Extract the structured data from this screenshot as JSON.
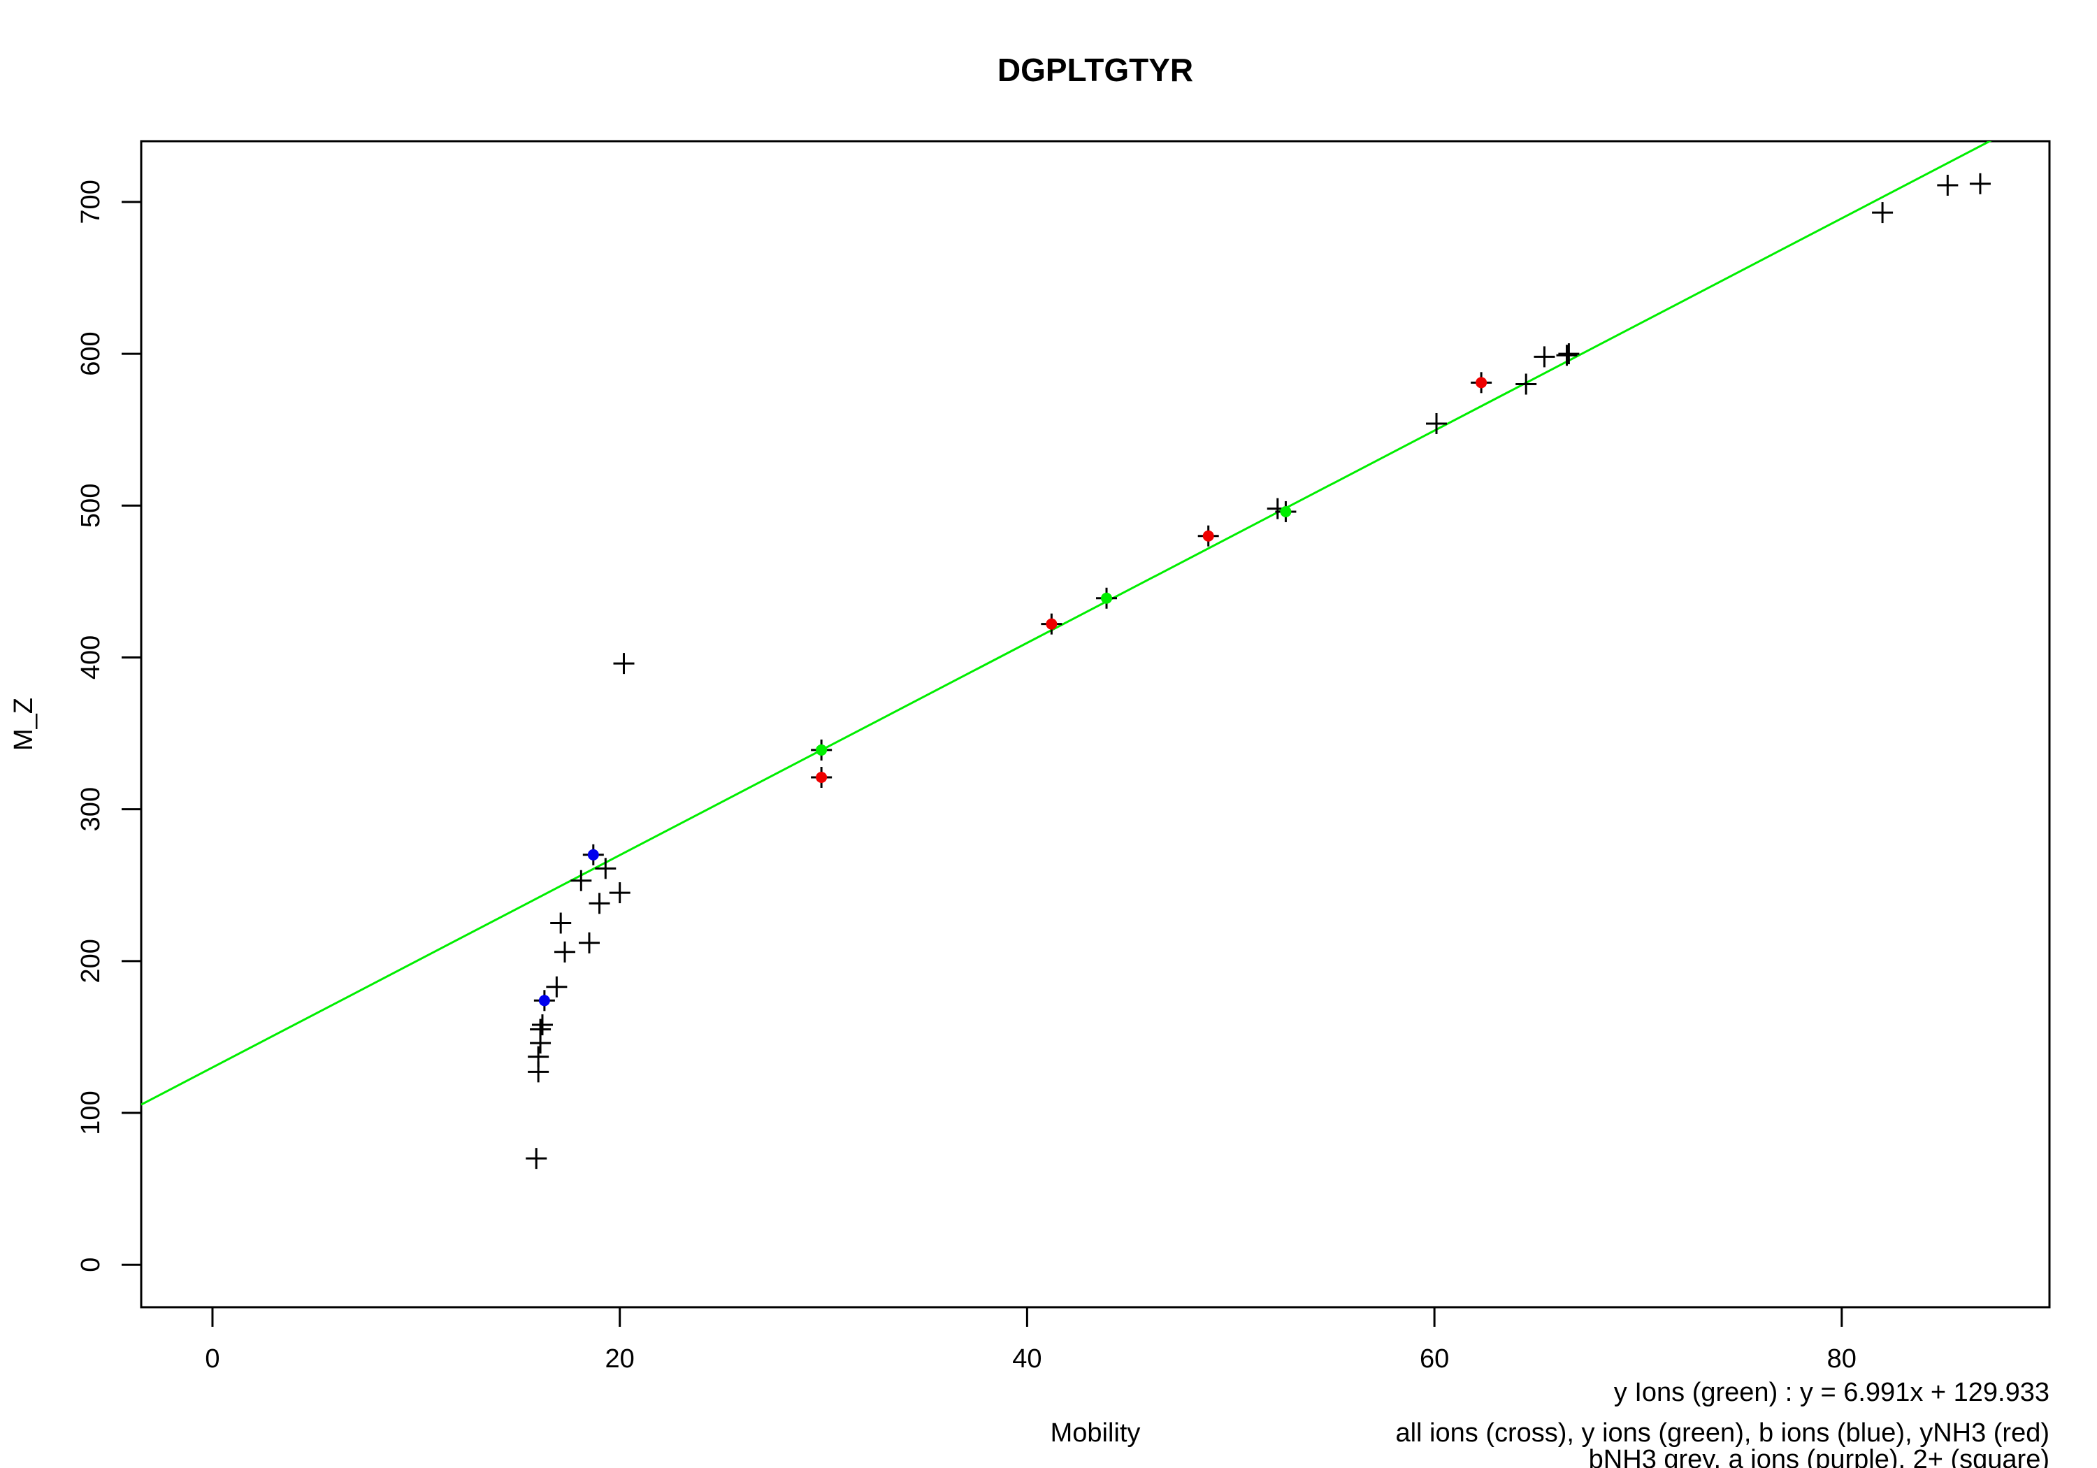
{
  "chart_data": {
    "type": "scatter",
    "title": "DGPLTGTYR",
    "xlabel": "Mobility",
    "ylabel": "M_Z",
    "xlim": [
      -3.5,
      90.2
    ],
    "ylim": [
      -28,
      740
    ],
    "x_ticks": [
      0,
      20,
      40,
      60,
      80
    ],
    "y_ticks": [
      0,
      100,
      200,
      300,
      400,
      500,
      600,
      700
    ],
    "grid": false,
    "fit_line": {
      "label": "y Ions (green)",
      "equation": "y = 6.991x + 129.933",
      "slope": 6.991,
      "intercept": 129.933,
      "color": "#00ee00"
    },
    "notes": [
      "all ions (cross), y ions (green), b ions (blue), yNH3 (red)",
      "bNH3 grey, a ions (purple), 2+ (square)"
    ],
    "series": [
      {
        "marker": "cross",
        "color": "#000000",
        "points": [
          [
            15.9,
            70
          ],
          [
            16.0,
            127
          ],
          [
            16.0,
            137
          ],
          [
            16.1,
            146
          ],
          [
            16.1,
            155
          ],
          [
            16.2,
            158
          ],
          [
            16.3,
            174
          ],
          [
            16.9,
            183
          ],
          [
            17.1,
            225
          ],
          [
            17.3,
            206
          ],
          [
            18.1,
            253
          ],
          [
            18.5,
            212
          ],
          [
            18.7,
            270
          ],
          [
            19.0,
            238
          ],
          [
            19.3,
            261
          ],
          [
            20.0,
            245
          ],
          [
            20.2,
            396
          ],
          [
            29.9,
            339
          ],
          [
            29.9,
            321
          ],
          [
            41.2,
            422
          ],
          [
            43.9,
            439
          ],
          [
            48.9,
            480
          ],
          [
            52.3,
            498
          ],
          [
            52.7,
            496
          ],
          [
            60.1,
            554
          ],
          [
            62.3,
            581
          ],
          [
            64.5,
            580
          ],
          [
            65.4,
            598
          ],
          [
            66.5,
            599
          ],
          [
            66.6,
            600
          ],
          [
            82.0,
            693
          ],
          [
            85.2,
            711
          ],
          [
            86.8,
            712
          ]
        ]
      },
      {
        "marker": "dot",
        "color": "#00ee00",
        "points": [
          [
            29.9,
            339
          ],
          [
            43.9,
            439
          ],
          [
            52.7,
            496
          ]
        ]
      },
      {
        "marker": "dot",
        "color": "#0000ee",
        "points": [
          [
            16.3,
            174
          ],
          [
            18.7,
            270
          ]
        ]
      },
      {
        "marker": "dot",
        "color": "#ee0000",
        "points": [
          [
            29.9,
            321
          ],
          [
            41.2,
            422
          ],
          [
            48.9,
            480
          ],
          [
            62.3,
            581
          ]
        ]
      }
    ]
  }
}
